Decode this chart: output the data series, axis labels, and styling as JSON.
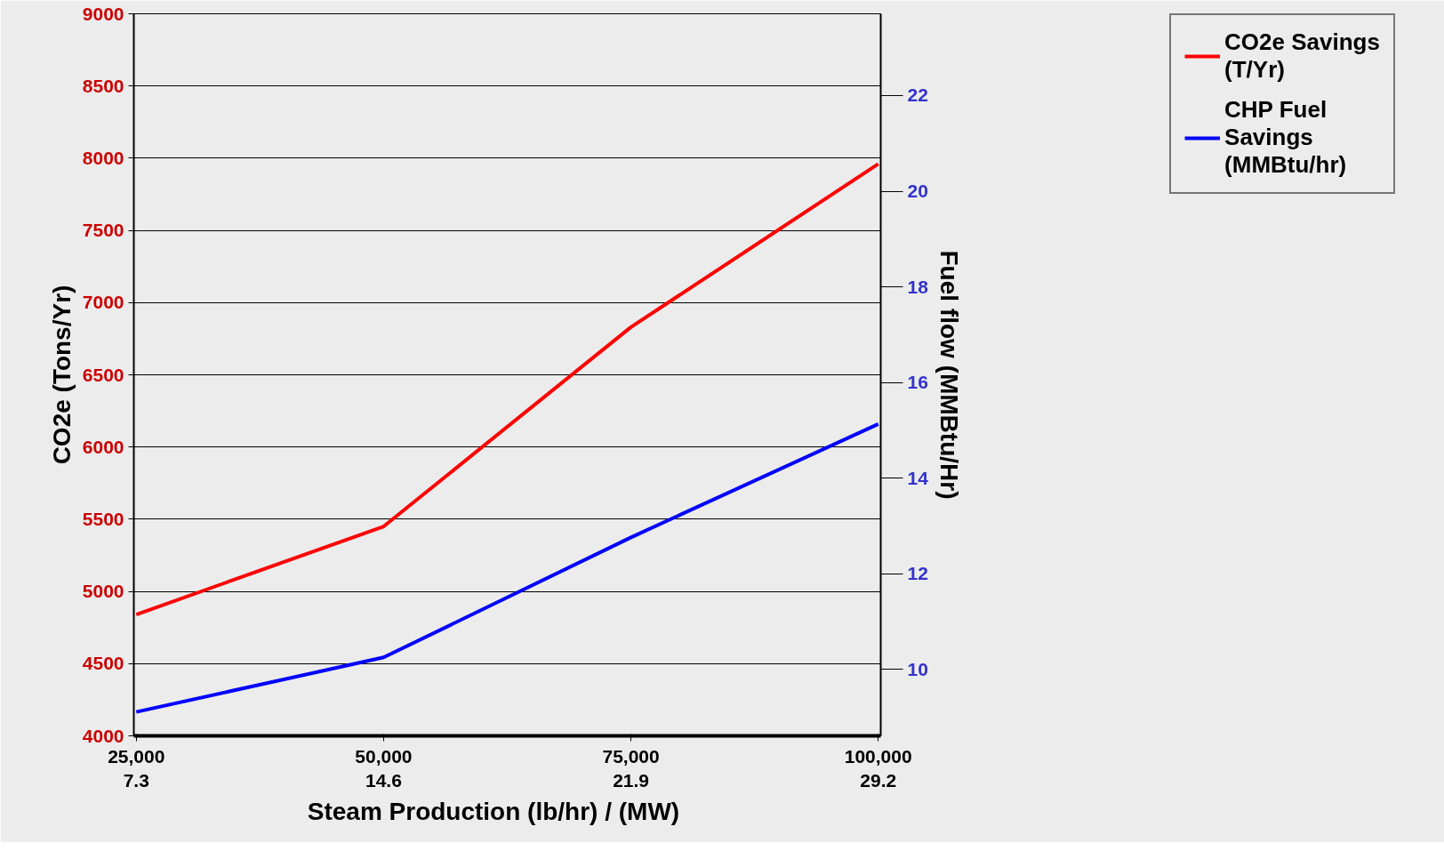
{
  "chart_data": {
    "type": "line",
    "xlabel": "Steam Production (lb/hr)   /   (MW)",
    "ylabel": "CO2e (Tons/Yr)",
    "y2label": "Fuel flow (MMBtu/Hr)",
    "categories": [
      "25,000\n7.3",
      "50,000\n14.6",
      "75,000\n21.9",
      "100,000\n29.2"
    ],
    "series": [
      {
        "name": "CO2e Savings\n(T/Yr)",
        "color": "#ff0000",
        "values": [
          4840,
          5450,
          6830,
          7960
        ]
      },
      {
        "name": "CHP Fuel\nSavings\n(MMBtu/hr)",
        "color": "#0000ff",
        "axis": "y2",
        "values": [
          9.11,
          10.25,
          12.76,
          15.13
        ]
      }
    ],
    "ylim": [
      4000,
      9000
    ],
    "yticks": [
      4000,
      4500,
      5000,
      5500,
      6000,
      6500,
      7000,
      7500,
      8000,
      8500,
      9000
    ],
    "y2lim": [
      8.61,
      23.71
    ],
    "y2ticks": [
      10,
      12,
      14,
      16,
      18,
      20,
      22
    ],
    "grid": "y",
    "legend": "top right",
    "marker": "none",
    "line_style": "solid"
  }
}
